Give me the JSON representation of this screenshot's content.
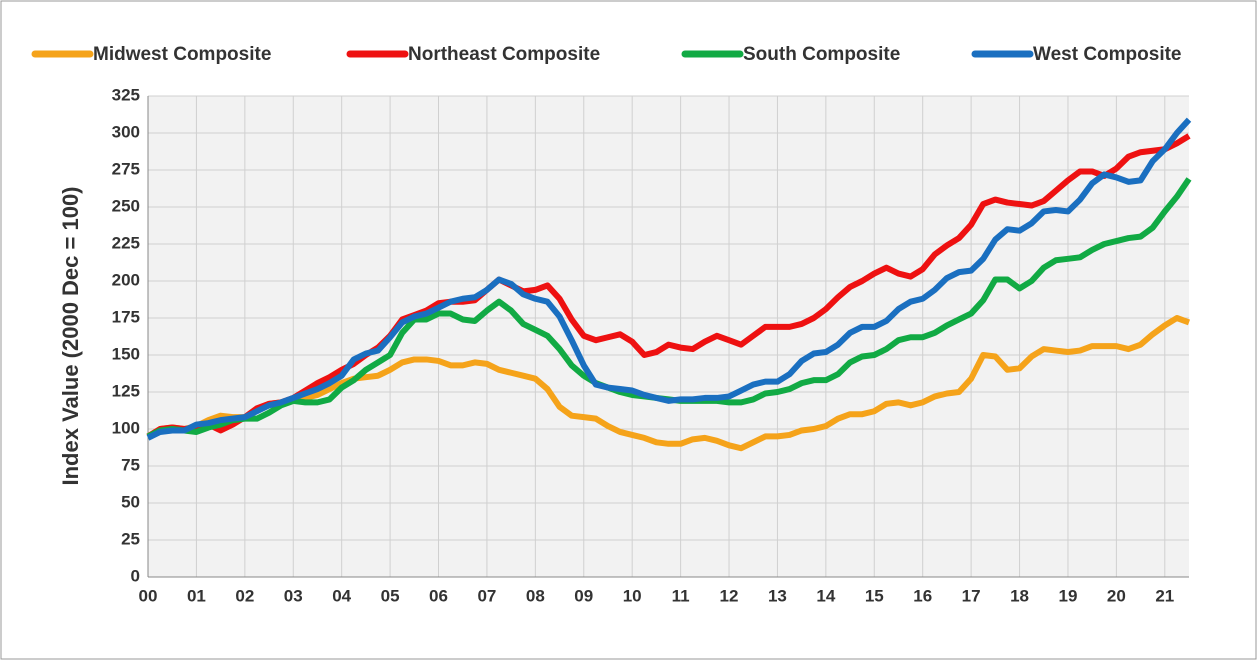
{
  "chart_data": {
    "type": "line",
    "ylabel": "Index Value (2000 Dec = 100)",
    "categories": [
      "00",
      null,
      null,
      null,
      "01",
      null,
      null,
      null,
      "02",
      null,
      null,
      null,
      "03",
      null,
      null,
      null,
      "04",
      null,
      null,
      null,
      "05",
      null,
      null,
      null,
      "06",
      null,
      null,
      null,
      "07",
      null,
      null,
      null,
      "08",
      null,
      null,
      null,
      "09",
      null,
      null,
      null,
      "10",
      null,
      null,
      null,
      "11",
      null,
      null,
      null,
      "12",
      null,
      null,
      null,
      "13",
      null,
      null,
      null,
      "14",
      null,
      null,
      null,
      "15",
      null,
      null,
      null,
      "16",
      null,
      null,
      null,
      "17",
      null,
      null,
      null,
      "18",
      null,
      null,
      null,
      "19",
      null,
      null,
      null,
      "20",
      null,
      null,
      null,
      "21",
      null,
      null
    ],
    "series": [
      {
        "name": "Midwest Composite",
        "color": "#f5a31a",
        "values": [
          95,
          100,
          101,
          100,
          102,
          106,
          109,
          108,
          108,
          113,
          117,
          118,
          120,
          121,
          123,
          127,
          131,
          134,
          135,
          136,
          140,
          145,
          147,
          147,
          146,
          143,
          143,
          145,
          144,
          140,
          138,
          136,
          134,
          127,
          115,
          109,
          108,
          107,
          102,
          98,
          96,
          94,
          91,
          90,
          90,
          93,
          94,
          92,
          89,
          87,
          91,
          95,
          95,
          96,
          99,
          100,
          102,
          107,
          110,
          110,
          112,
          117,
          118,
          116,
          118,
          122,
          124,
          125,
          134,
          150,
          149,
          140,
          141,
          149,
          154,
          153,
          152,
          153,
          156,
          156,
          156,
          154,
          157,
          164,
          170,
          175,
          172
        ]
      },
      {
        "name": "Northeast Composite",
        "color": "#ee1111",
        "values": [
          95,
          100,
          101,
          100,
          101,
          103,
          99,
          103,
          108,
          114,
          117,
          118,
          121,
          126,
          131,
          135,
          140,
          144,
          150,
          155,
          163,
          174,
          177,
          180,
          185,
          186,
          186,
          187,
          194,
          201,
          197,
          193,
          194,
          197,
          188,
          174,
          163,
          160,
          162,
          164,
          159,
          150,
          152,
          157,
          155,
          154,
          159,
          163,
          160,
          157,
          163,
          169,
          169,
          169,
          171,
          175,
          181,
          189,
          196,
          200,
          205,
          209,
          205,
          203,
          208,
          218,
          224,
          229,
          238,
          252,
          255,
          253,
          252,
          251,
          254,
          261,
          268,
          274,
          274,
          271,
          276,
          284,
          287,
          288,
          289,
          293,
          298
        ]
      },
      {
        "name": "South Composite",
        "color": "#11aa44",
        "values": [
          95,
          99,
          100,
          99,
          98,
          101,
          103,
          106,
          107,
          107,
          111,
          116,
          119,
          118,
          118,
          120,
          128,
          133,
          140,
          145,
          150,
          165,
          174,
          174,
          178,
          178,
          174,
          173,
          180,
          186,
          180,
          171,
          167,
          163,
          154,
          143,
          136,
          131,
          128,
          125,
          123,
          122,
          121,
          120,
          119,
          119,
          119,
          119,
          118,
          118,
          120,
          124,
          125,
          127,
          131,
          133,
          133,
          137,
          145,
          149,
          150,
          154,
          160,
          162,
          162,
          165,
          170,
          174,
          178,
          187,
          201,
          201,
          195,
          200,
          209,
          214,
          215,
          216,
          221,
          225,
          227,
          229,
          230,
          236,
          247,
          257,
          269
        ]
      },
      {
        "name": "West Composite",
        "color": "#1a6fc0",
        "values": [
          94,
          98,
          99,
          99,
          103,
          104,
          106,
          107,
          108,
          112,
          116,
          118,
          121,
          124,
          127,
          131,
          136,
          147,
          151,
          153,
          162,
          172,
          176,
          178,
          182,
          186,
          188,
          189,
          194,
          201,
          198,
          191,
          188,
          186,
          176,
          160,
          143,
          130,
          128,
          127,
          126,
          123,
          121,
          119,
          120,
          120,
          121,
          121,
          122,
          126,
          130,
          132,
          132,
          137,
          146,
          151,
          152,
          157,
          165,
          169,
          169,
          173,
          181,
          186,
          188,
          194,
          202,
          206,
          207,
          215,
          228,
          235,
          234,
          239,
          247,
          248,
          247,
          255,
          266,
          272,
          270,
          267,
          268,
          281,
          289,
          300,
          309
        ]
      }
    ],
    "ylim": [
      0,
      325
    ],
    "yticks": [
      0,
      25,
      50,
      75,
      100,
      125,
      150,
      175,
      200,
      225,
      250,
      275,
      300,
      325
    ],
    "grid": true
  }
}
